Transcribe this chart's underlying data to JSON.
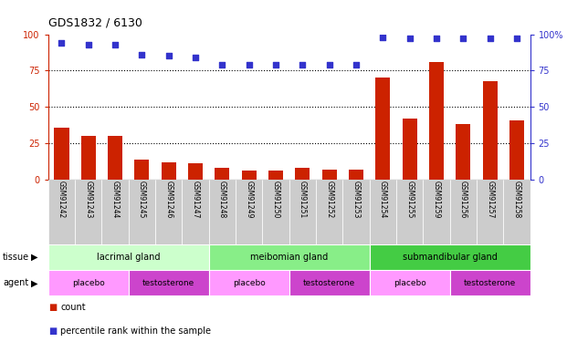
{
  "title": "GDS1832 / 6130",
  "samples": [
    "GSM91242",
    "GSM91243",
    "GSM91244",
    "GSM91245",
    "GSM91246",
    "GSM91247",
    "GSM91248",
    "GSM91249",
    "GSM91250",
    "GSM91251",
    "GSM91252",
    "GSM91253",
    "GSM91254",
    "GSM91255",
    "GSM91259",
    "GSM91256",
    "GSM91257",
    "GSM91258"
  ],
  "counts": [
    36,
    30,
    30,
    14,
    12,
    11,
    8,
    6,
    6,
    8,
    7,
    7,
    70,
    42,
    81,
    38,
    68,
    41
  ],
  "percentiles": [
    94,
    93,
    93,
    86,
    85,
    84,
    79,
    79,
    79,
    79,
    79,
    79,
    98,
    97,
    97,
    97,
    97,
    97
  ],
  "bar_color": "#cc2200",
  "dot_color": "#3333cc",
  "ylim_left": [
    0,
    100
  ],
  "ylim_right": [
    0,
    100
  ],
  "grid_lines": [
    25,
    50,
    75
  ],
  "tissue_groups": [
    {
      "label": "lacrimal gland",
      "start": 0,
      "end": 6,
      "color": "#ccffcc"
    },
    {
      "label": "meibomian gland",
      "start": 6,
      "end": 12,
      "color": "#88ee88"
    },
    {
      "label": "submandibular gland",
      "start": 12,
      "end": 18,
      "color": "#44cc44"
    }
  ],
  "agent_groups": [
    {
      "label": "placebo",
      "start": 0,
      "end": 3,
      "color": "#ff99ff"
    },
    {
      "label": "testosterone",
      "start": 3,
      "end": 6,
      "color": "#cc44cc"
    },
    {
      "label": "placebo",
      "start": 6,
      "end": 9,
      "color": "#ff99ff"
    },
    {
      "label": "testosterone",
      "start": 9,
      "end": 12,
      "color": "#cc44cc"
    },
    {
      "label": "placebo",
      "start": 12,
      "end": 15,
      "color": "#ff99ff"
    },
    {
      "label": "testosterone",
      "start": 15,
      "end": 18,
      "color": "#cc44cc"
    }
  ],
  "legend_count_label": "count",
  "legend_pct_label": "percentile rank within the sample",
  "tissue_label": "tissue",
  "agent_label": "agent",
  "bg_color": "#ffffff",
  "xticklabel_bg": "#cccccc"
}
